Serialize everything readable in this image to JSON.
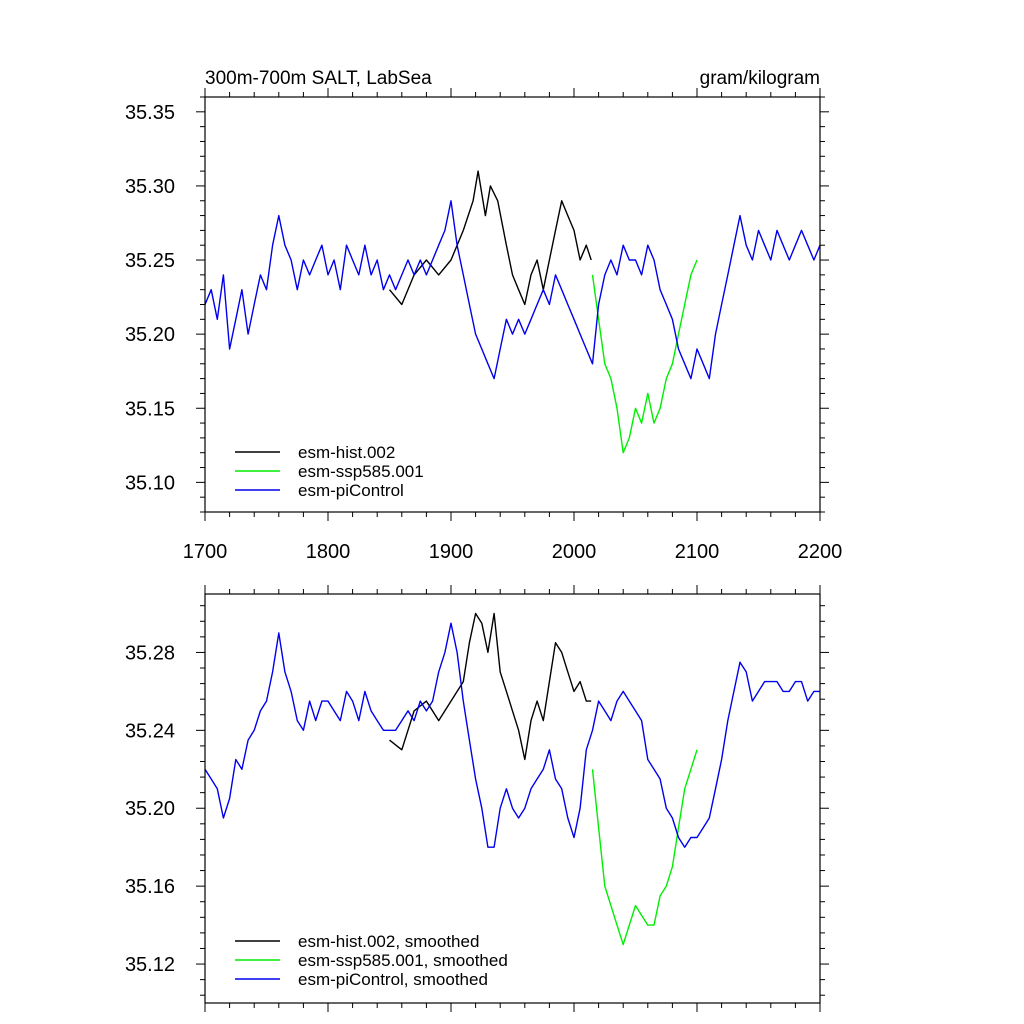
{
  "figure": {
    "title_left": "300m-700m SALT, LabSea",
    "title_right": "gram/kilogram"
  },
  "colors": {
    "esm-hist.002": "#000000",
    "esm-ssp585.001": "#00ee00",
    "esm-piControl": "#0000ee"
  },
  "chart_data": [
    {
      "type": "line",
      "title": "300m-700m SALT, LabSea",
      "units": "gram/kilogram",
      "xlim": [
        1700,
        2200
      ],
      "ylim": [
        35.08,
        35.36
      ],
      "xticks": [
        1700,
        1800,
        1900,
        2000,
        2100,
        2200
      ],
      "xtick_labels": [
        "1700",
        "1800",
        "1900",
        "2000",
        "2100",
        "2200"
      ],
      "yticks": [
        35.1,
        35.15,
        35.2,
        35.25,
        35.3,
        35.35
      ],
      "ytick_labels": [
        "35.10",
        "35.15",
        "35.20",
        "35.25",
        "35.30",
        "35.35"
      ],
      "legend_position": "bottom-left",
      "series": [
        {
          "name": "esm-hist.002",
          "key": "esm-hist.002",
          "x": [
            1850,
            1860,
            1870,
            1880,
            1890,
            1900,
            1910,
            1918,
            1922,
            1928,
            1932,
            1938,
            1945,
            1950,
            1955,
            1960,
            1965,
            1970,
            1975,
            1980,
            1985,
            1990,
            1995,
            2000,
            2005,
            2010,
            2014
          ],
          "y": [
            35.23,
            35.22,
            35.24,
            35.25,
            35.24,
            35.25,
            35.27,
            35.29,
            35.31,
            35.28,
            35.3,
            35.29,
            35.26,
            35.24,
            35.23,
            35.22,
            35.24,
            35.25,
            35.23,
            35.25,
            35.27,
            35.29,
            35.28,
            35.27,
            35.25,
            35.26,
            35.25
          ]
        },
        {
          "name": "esm-ssp585.001",
          "key": "esm-ssp585.001",
          "x": [
            2015,
            2020,
            2025,
            2030,
            2035,
            2040,
            2045,
            2050,
            2055,
            2060,
            2065,
            2070,
            2075,
            2080,
            2085,
            2090,
            2095,
            2100
          ],
          "y": [
            35.24,
            35.21,
            35.18,
            35.17,
            35.15,
            35.12,
            35.13,
            35.15,
            35.14,
            35.16,
            35.14,
            35.15,
            35.17,
            35.18,
            35.2,
            35.22,
            35.24,
            35.25
          ]
        },
        {
          "name": "esm-piControl",
          "key": "esm-piControl",
          "x": [
            1700,
            1705,
            1710,
            1715,
            1720,
            1725,
            1730,
            1735,
            1740,
            1745,
            1750,
            1755,
            1760,
            1765,
            1770,
            1775,
            1780,
            1785,
            1790,
            1795,
            1800,
            1805,
            1810,
            1815,
            1820,
            1825,
            1830,
            1835,
            1840,
            1845,
            1850,
            1855,
            1860,
            1865,
            1870,
            1875,
            1880,
            1885,
            1890,
            1895,
            1900,
            1905,
            1910,
            1915,
            1920,
            1925,
            1930,
            1935,
            1940,
            1945,
            1950,
            1955,
            1960,
            1965,
            1970,
            1975,
            1980,
            1985,
            1990,
            1995,
            2000,
            2005,
            2010,
            2015,
            2020,
            2025,
            2030,
            2035,
            2040,
            2045,
            2050,
            2055,
            2060,
            2065,
            2070,
            2075,
            2080,
            2085,
            2090,
            2095,
            2100,
            2105,
            2110,
            2115,
            2120,
            2125,
            2130,
            2135,
            2140,
            2145,
            2150,
            2155,
            2160,
            2165,
            2170,
            2175,
            2180,
            2185,
            2190,
            2195,
            2200
          ],
          "y": [
            35.22,
            35.23,
            35.21,
            35.24,
            35.19,
            35.21,
            35.23,
            35.2,
            35.22,
            35.24,
            35.23,
            35.26,
            35.28,
            35.26,
            35.25,
            35.23,
            35.25,
            35.24,
            35.25,
            35.26,
            35.24,
            35.25,
            35.23,
            35.26,
            35.25,
            35.24,
            35.26,
            35.24,
            35.25,
            35.23,
            35.24,
            35.23,
            35.24,
            35.25,
            35.24,
            35.25,
            35.24,
            35.25,
            35.26,
            35.27,
            35.29,
            35.26,
            35.24,
            35.22,
            35.2,
            35.19,
            35.18,
            35.17,
            35.19,
            35.21,
            35.2,
            35.21,
            35.2,
            35.21,
            35.22,
            35.23,
            35.22,
            35.24,
            35.23,
            35.22,
            35.21,
            35.2,
            35.19,
            35.18,
            35.22,
            35.24,
            35.25,
            35.24,
            35.26,
            35.25,
            35.25,
            35.24,
            35.26,
            35.25,
            35.23,
            35.22,
            35.21,
            35.19,
            35.18,
            35.17,
            35.19,
            35.18,
            35.17,
            35.2,
            35.22,
            35.24,
            35.26,
            35.28,
            35.26,
            35.25,
            35.27,
            35.26,
            35.25,
            35.27,
            35.26,
            35.25,
            35.26,
            35.27,
            35.26,
            35.25,
            35.26
          ]
        }
      ],
      "legend": [
        "esm-hist.002",
        "esm-ssp585.001",
        "esm-piControl"
      ]
    },
    {
      "type": "line",
      "title": "",
      "xlim": [
        1700,
        2200
      ],
      "ylim": [
        35.1,
        35.31
      ],
      "xticks": [
        1700,
        1800,
        1900,
        2000,
        2100,
        2200
      ],
      "yticks": [
        35.12,
        35.16,
        35.2,
        35.24,
        35.28
      ],
      "ytick_labels": [
        "35.12",
        "35.16",
        "35.20",
        "35.24",
        "35.28"
      ],
      "legend_position": "bottom-left",
      "series": [
        {
          "name": "esm-hist.002, smoothed",
          "key": "esm-hist.002",
          "x": [
            1850,
            1860,
            1870,
            1880,
            1890,
            1900,
            1910,
            1915,
            1920,
            1925,
            1930,
            1935,
            1940,
            1945,
            1950,
            1955,
            1960,
            1965,
            1970,
            1975,
            1980,
            1985,
            1990,
            1995,
            2000,
            2005,
            2010,
            2014
          ],
          "y": [
            35.235,
            35.23,
            35.25,
            35.255,
            35.245,
            35.255,
            35.265,
            35.285,
            35.3,
            35.295,
            35.28,
            35.3,
            35.27,
            35.26,
            35.25,
            35.24,
            35.225,
            35.245,
            35.255,
            35.245,
            35.265,
            35.285,
            35.28,
            35.27,
            35.26,
            35.265,
            35.255,
            35.255
          ]
        },
        {
          "name": "esm-ssp585.001, smoothed",
          "key": "esm-ssp585.001",
          "x": [
            2015,
            2020,
            2025,
            2030,
            2035,
            2040,
            2045,
            2050,
            2055,
            2060,
            2065,
            2070,
            2075,
            2080,
            2085,
            2090,
            2095,
            2100
          ],
          "y": [
            35.22,
            35.19,
            35.16,
            35.15,
            35.14,
            35.13,
            35.14,
            35.15,
            35.145,
            35.14,
            35.14,
            35.155,
            35.16,
            35.17,
            35.19,
            35.21,
            35.22,
            35.23
          ]
        },
        {
          "name": "esm-piControl, smoothed",
          "key": "esm-piControl",
          "x": [
            1700,
            1705,
            1710,
            1715,
            1720,
            1725,
            1730,
            1735,
            1740,
            1745,
            1750,
            1755,
            1760,
            1765,
            1770,
            1775,
            1780,
            1785,
            1790,
            1795,
            1800,
            1805,
            1810,
            1815,
            1820,
            1825,
            1830,
            1835,
            1840,
            1845,
            1850,
            1855,
            1860,
            1865,
            1870,
            1875,
            1880,
            1885,
            1890,
            1895,
            1900,
            1905,
            1910,
            1915,
            1920,
            1925,
            1930,
            1935,
            1940,
            1945,
            1950,
            1955,
            1960,
            1965,
            1970,
            1975,
            1980,
            1985,
            1990,
            1995,
            2000,
            2005,
            2010,
            2015,
            2020,
            2025,
            2030,
            2035,
            2040,
            2045,
            2050,
            2055,
            2060,
            2065,
            2070,
            2075,
            2080,
            2085,
            2090,
            2095,
            2100,
            2105,
            2110,
            2115,
            2120,
            2125,
            2130,
            2135,
            2140,
            2145,
            2150,
            2155,
            2160,
            2165,
            2170,
            2175,
            2180,
            2185,
            2190,
            2195,
            2200
          ],
          "y": [
            35.22,
            35.215,
            35.21,
            35.195,
            35.205,
            35.225,
            35.22,
            35.235,
            35.24,
            35.25,
            35.255,
            35.27,
            35.29,
            35.27,
            35.26,
            35.245,
            35.24,
            35.255,
            35.245,
            35.255,
            35.255,
            35.25,
            35.245,
            35.26,
            35.255,
            35.245,
            35.26,
            35.25,
            35.245,
            35.24,
            35.24,
            35.24,
            35.245,
            35.25,
            35.245,
            35.255,
            35.25,
            35.255,
            35.27,
            35.28,
            35.295,
            35.28,
            35.255,
            35.235,
            35.215,
            35.2,
            35.18,
            35.18,
            35.2,
            35.21,
            35.2,
            35.195,
            35.2,
            35.21,
            35.215,
            35.22,
            35.23,
            35.215,
            35.21,
            35.195,
            35.185,
            35.2,
            35.23,
            35.24,
            35.255,
            35.25,
            35.245,
            35.255,
            35.26,
            35.255,
            35.25,
            35.245,
            35.225,
            35.22,
            35.215,
            35.2,
            35.195,
            35.185,
            35.18,
            35.185,
            35.185,
            35.19,
            35.195,
            35.21,
            35.225,
            35.245,
            35.26,
            35.275,
            35.27,
            35.255,
            35.26,
            35.265,
            35.265,
            35.265,
            35.26,
            35.26,
            35.265,
            35.265,
            35.255,
            35.26,
            35.26
          ]
        }
      ],
      "legend": [
        "esm-hist.002, smoothed",
        "esm-ssp585.001, smoothed",
        "esm-piControl, smoothed"
      ]
    }
  ]
}
